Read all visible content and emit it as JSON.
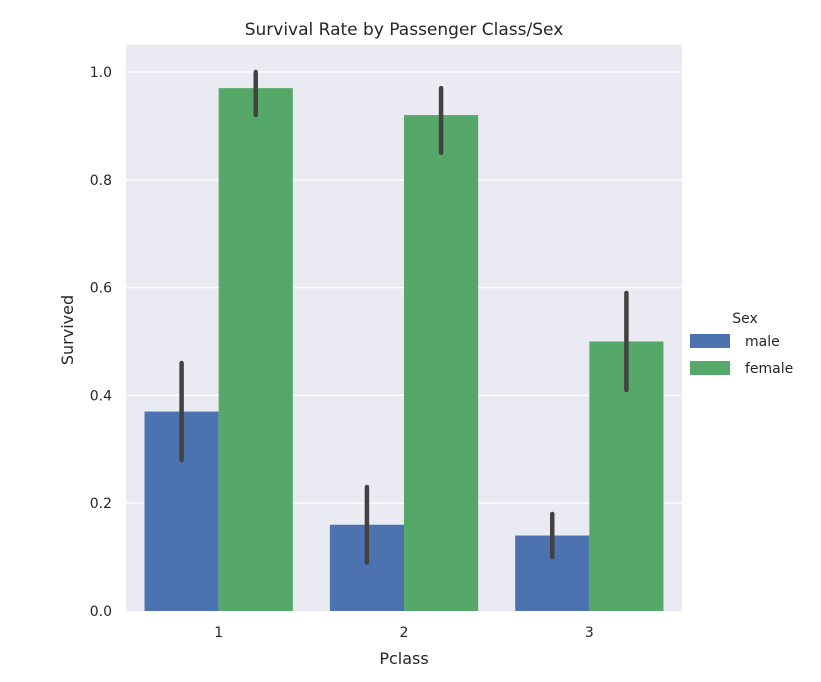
{
  "chart_data": {
    "type": "bar",
    "title": "Survival Rate by Passenger Class/Sex",
    "xlabel": "Pclass",
    "ylabel": "Survived",
    "categories": [
      "1",
      "2",
      "3"
    ],
    "ylim": [
      0,
      1.05
    ],
    "yticks": [
      0.0,
      0.2,
      0.4,
      0.6,
      0.8,
      1.0
    ],
    "ytick_labels": [
      "0.0",
      "0.2",
      "0.4",
      "0.6",
      "0.8",
      "1.0"
    ],
    "grid": true,
    "legend": {
      "title": "Sex",
      "placement": "right"
    },
    "series": [
      {
        "name": "male",
        "color": "#4c72b0",
        "values": [
          0.37,
          0.16,
          0.14
        ],
        "ci_low": [
          0.28,
          0.09,
          0.1
        ],
        "ci_high": [
          0.46,
          0.23,
          0.18
        ]
      },
      {
        "name": "female",
        "color": "#55a868",
        "values": [
          0.97,
          0.92,
          0.5
        ],
        "ci_low": [
          0.92,
          0.85,
          0.41
        ],
        "ci_high": [
          1.0,
          0.97,
          0.59
        ]
      }
    ],
    "colors": {
      "background": "#eaeaf2",
      "grid": "#ffffff",
      "error_bar": "#424242"
    }
  }
}
